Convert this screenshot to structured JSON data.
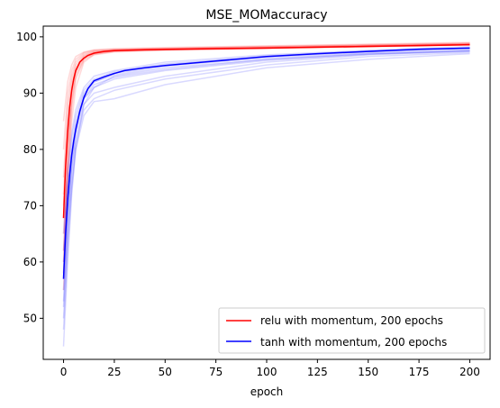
{
  "chart_data": {
    "type": "line",
    "title": "MSE_MOMaccuracy",
    "xlabel": "epoch",
    "ylabel": "",
    "xlim": [
      -10,
      210
    ],
    "ylim": [
      42.7,
      101.9
    ],
    "xticks": [
      0,
      25,
      50,
      75,
      100,
      125,
      150,
      175,
      200
    ],
    "yticks": [
      50,
      60,
      70,
      80,
      90,
      100
    ],
    "grid": false,
    "legend_position": "lower-right",
    "series": [
      {
        "name": "relu with momentum, 200 epochs",
        "color": "#ff0000",
        "x": [
          0,
          1,
          2,
          3,
          4,
          5,
          6,
          8,
          10,
          12,
          15,
          20,
          25,
          30,
          40,
          50,
          75,
          100,
          125,
          150,
          175,
          200
        ],
        "y": [
          67.8,
          77.0,
          83.0,
          87.5,
          90.5,
          92.5,
          94.0,
          95.5,
          96.2,
          96.7,
          97.1,
          97.4,
          97.55,
          97.6,
          97.7,
          97.75,
          97.9,
          98.0,
          98.15,
          98.3,
          98.45,
          98.6
        ]
      },
      {
        "name": "tanh with momentum, 200 epochs",
        "color": "#0000ff",
        "x": [
          0,
          1,
          2,
          3,
          4,
          5,
          6,
          8,
          10,
          12,
          15,
          20,
          25,
          30,
          40,
          50,
          75,
          100,
          125,
          150,
          175,
          200
        ],
        "y": [
          57.0,
          65.0,
          71.0,
          75.5,
          79.0,
          81.5,
          83.5,
          86.8,
          89.2,
          90.8,
          92.2,
          92.9,
          93.5,
          94.0,
          94.5,
          94.9,
          95.7,
          96.5,
          97.0,
          97.4,
          97.8,
          98.0
        ]
      }
    ],
    "faint_runs": {
      "relu_color": "#ff0000",
      "tanh_color": "#0000ff",
      "opacity": 0.15,
      "relu": [
        {
          "x": [
            0,
            2,
            4,
            6,
            10,
            15,
            25,
            50,
            100,
            150,
            200
          ],
          "y": [
            60,
            80,
            90,
            94,
            96.5,
            97.2,
            97.6,
            97.8,
            98.1,
            98.4,
            98.7
          ]
        },
        {
          "x": [
            0,
            2,
            4,
            6,
            10,
            15,
            25,
            50,
            100,
            150,
            200
          ],
          "y": [
            72,
            86,
            92,
            95,
            96.8,
            97.4,
            97.7,
            97.9,
            98.2,
            98.5,
            98.8
          ]
        },
        {
          "x": [
            0,
            2,
            4,
            6,
            10,
            15,
            25,
            50,
            100,
            150,
            200
          ],
          "y": [
            65,
            78,
            88,
            93,
            96,
            97,
            97.5,
            97.7,
            98,
            98.3,
            98.6
          ]
        },
        {
          "x": [
            0,
            2,
            4,
            6,
            10,
            15,
            25,
            50,
            100,
            150,
            200
          ],
          "y": [
            80,
            90,
            94,
            96,
            97.2,
            97.6,
            97.8,
            98,
            98.3,
            98.6,
            98.9
          ]
        },
        {
          "x": [
            0,
            2,
            4,
            6,
            10,
            15,
            25,
            50,
            100,
            150,
            200
          ],
          "y": [
            55,
            74,
            85,
            91,
            95.5,
            96.8,
            97.3,
            97.6,
            97.9,
            98.2,
            98.5
          ]
        },
        {
          "x": [
            0,
            2,
            4,
            6,
            10,
            15,
            25,
            50,
            100,
            150,
            200
          ],
          "y": [
            70,
            84,
            91,
            94.5,
            96.6,
            97.3,
            97.6,
            97.8,
            98.1,
            98.4,
            98.7
          ]
        },
        {
          "x": [
            0,
            2,
            4,
            6,
            10,
            15,
            25,
            50,
            100,
            150,
            200
          ],
          "y": [
            62,
            76,
            87,
            92.5,
            95.8,
            96.9,
            97.4,
            97.7,
            98,
            98.3,
            98.6
          ]
        },
        {
          "x": [
            0,
            2,
            4,
            6,
            10,
            15,
            25,
            50,
            100,
            150,
            200
          ],
          "y": [
            85,
            92,
            95,
            96.5,
            97.3,
            97.7,
            97.9,
            98.1,
            98.4,
            98.7,
            99
          ]
        },
        {
          "x": [
            0,
            2,
            4,
            6,
            10,
            15,
            25,
            50,
            100,
            150,
            200
          ],
          "y": [
            58,
            79,
            89,
            93.5,
            96.2,
            97.1,
            97.5,
            97.7,
            98,
            98.3,
            98.6
          ]
        },
        {
          "x": [
            0,
            2,
            4,
            6,
            10,
            15,
            25,
            50,
            100,
            150,
            200
          ],
          "y": [
            75,
            88,
            93,
            95.5,
            97,
            97.5,
            97.7,
            97.9,
            98.2,
            98.5,
            98.8
          ]
        }
      ],
      "tanh": [
        {
          "x": [
            0,
            2,
            4,
            6,
            10,
            15,
            25,
            50,
            100,
            150,
            200
          ],
          "y": [
            45,
            60,
            72,
            80,
            88,
            91,
            93,
            94.5,
            96,
            97,
            97.5
          ]
        },
        {
          "x": [
            0,
            2,
            4,
            6,
            10,
            15,
            25,
            50,
            100,
            150,
            200
          ],
          "y": [
            60,
            72,
            80,
            85,
            90,
            92,
            93.5,
            95,
            96.5,
            97.4,
            98
          ]
        },
        {
          "x": [
            0,
            2,
            4,
            6,
            10,
            15,
            25,
            50,
            100,
            150,
            200
          ],
          "y": [
            52,
            66,
            76,
            82,
            88,
            90,
            91,
            93,
            95.5,
            96.8,
            97.5
          ]
        },
        {
          "x": [
            0,
            2,
            4,
            6,
            10,
            15,
            25,
            50,
            100,
            150,
            200
          ],
          "y": [
            65,
            76,
            83,
            87,
            91,
            93,
            94,
            95.5,
            96.8,
            97.6,
            98.2
          ]
        },
        {
          "x": [
            0,
            2,
            4,
            6,
            10,
            15,
            25,
            50,
            100,
            150,
            200
          ],
          "y": [
            50,
            64,
            74,
            81,
            87,
            89,
            90.5,
            92.5,
            95,
            96.5,
            97.2
          ]
        },
        {
          "x": [
            0,
            2,
            4,
            6,
            10,
            15,
            25,
            50,
            100,
            150,
            200
          ],
          "y": [
            58,
            70,
            79,
            84,
            89.5,
            92,
            93.2,
            94.8,
            96.3,
            97.2,
            97.8
          ]
        },
        {
          "x": [
            0,
            2,
            4,
            6,
            10,
            15,
            25,
            50,
            100,
            150,
            200
          ],
          "y": [
            55,
            68,
            77,
            83,
            89,
            91.5,
            92.8,
            94.2,
            96,
            97,
            97.6
          ]
        },
        {
          "x": [
            0,
            2,
            4,
            6,
            10,
            15,
            25,
            50,
            100,
            150,
            200
          ],
          "y": [
            48,
            62,
            73,
            80,
            86,
            88.5,
            89,
            91.5,
            94.5,
            96,
            97
          ]
        },
        {
          "x": [
            0,
            2,
            4,
            6,
            10,
            15,
            25,
            50,
            100,
            150,
            200
          ],
          "y": [
            62,
            74,
            82,
            86,
            90.5,
            92.5,
            93.8,
            95.2,
            96.6,
            97.5,
            98
          ]
        },
        {
          "x": [
            0,
            2,
            4,
            6,
            10,
            15,
            25,
            50,
            100,
            150,
            200
          ],
          "y": [
            53,
            67,
            78,
            84,
            89,
            91,
            92.5,
            94,
            95.8,
            96.9,
            97.4
          ]
        }
      ]
    }
  }
}
